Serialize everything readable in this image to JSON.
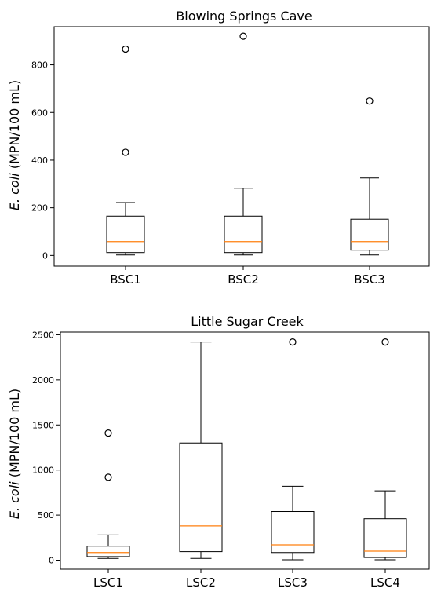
{
  "chart_data": [
    {
      "type": "boxplot",
      "title": "Blowing Springs Cave",
      "ylabel_italic": "E. coli",
      "ylabel_rest": " (MPN/100 mL)",
      "ylim": [
        -45,
        960
      ],
      "yticks": [
        0,
        200,
        400,
        600,
        800
      ],
      "categories": [
        "BSC1",
        "BSC2",
        "BSC3"
      ],
      "boxes": [
        {
          "whisker_low": 2,
          "q1": 12,
          "median": 58,
          "q3": 165,
          "whisker_high": 222,
          "outliers": [
            433,
            866
          ]
        },
        {
          "whisker_low": 2,
          "q1": 12,
          "median": 58,
          "q3": 165,
          "whisker_high": 282,
          "outliers": [
            920
          ]
        },
        {
          "whisker_low": 2,
          "q1": 22,
          "median": 58,
          "q3": 152,
          "whisker_high": 325,
          "outliers": [
            648
          ]
        }
      ]
    },
    {
      "type": "boxplot",
      "title": "Little Sugar Creek",
      "ylabel_italic": "E. coli",
      "ylabel_rest": " (MPN/100 mL)",
      "ylim": [
        -100,
        2530
      ],
      "yticks": [
        0,
        500,
        1000,
        1500,
        2000,
        2500
      ],
      "categories": [
        "LSC1",
        "LSC2",
        "LSC3",
        "LSC4"
      ],
      "boxes": [
        {
          "whisker_low": 20,
          "q1": 40,
          "median": 85,
          "q3": 155,
          "whisker_high": 280,
          "outliers": [
            920,
            1410
          ]
        },
        {
          "whisker_low": 20,
          "q1": 95,
          "median": 380,
          "q3": 1300,
          "whisker_high": 2420,
          "outliers": []
        },
        {
          "whisker_low": 5,
          "q1": 85,
          "median": 170,
          "q3": 540,
          "whisker_high": 820,
          "outliers": [
            2420
          ]
        },
        {
          "whisker_low": 5,
          "q1": 30,
          "median": 100,
          "q3": 460,
          "whisker_high": 770,
          "outliers": [
            2420
          ]
        }
      ]
    }
  ]
}
